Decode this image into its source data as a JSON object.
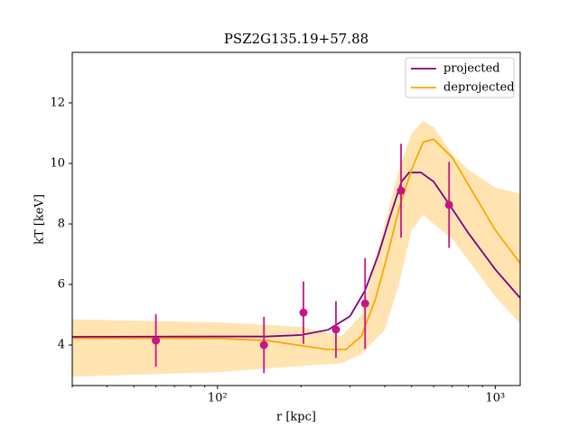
{
  "chart_data": {
    "type": "line",
    "title": "PSZ2G135.19+57.88",
    "x_label": "r [kpc]",
    "y_label": "kT [keV]",
    "x_scale": "log",
    "xlim": [
      30,
      1230
    ],
    "ylim": [
      2.66,
      13.67
    ],
    "xticks": [
      {
        "value": 100,
        "label": "10²"
      },
      {
        "value": 1000,
        "label": "10³"
      }
    ],
    "xminorticks": [
      30,
      40,
      50,
      60,
      70,
      80,
      90,
      200,
      300,
      400,
      500,
      600,
      700,
      800,
      900
    ],
    "yticks": [
      4,
      6,
      8,
      10,
      12
    ],
    "legend": "upper right",
    "series": [
      {
        "name": "projected",
        "color": "#800080",
        "x": [
          30,
          100,
          150,
          200,
          250,
          300,
          340,
          380,
          420,
          460,
          490,
          540,
          600,
          700,
          800,
          1000,
          1230
        ],
        "values": [
          4.27,
          4.28,
          4.28,
          4.33,
          4.5,
          4.95,
          5.8,
          7.0,
          8.3,
          9.4,
          9.7,
          9.7,
          9.4,
          8.5,
          7.7,
          6.5,
          5.55
        ]
      },
      {
        "name": "deprojected",
        "color": "#ffa500",
        "x": [
          30,
          100,
          150,
          200,
          250,
          290,
          330,
          370,
          410,
          450,
          500,
          550,
          600,
          700,
          800,
          1000,
          1230
        ],
        "values": [
          4.22,
          4.22,
          4.15,
          3.98,
          3.85,
          3.85,
          4.3,
          5.5,
          7.0,
          8.5,
          9.8,
          10.7,
          10.8,
          10.2,
          9.3,
          7.8,
          6.7
        ]
      }
    ],
    "band": {
      "color": "#ffa500",
      "x": [
        30,
        100,
        200,
        280,
        330,
        400,
        450,
        500,
        550,
        600,
        700,
        800,
        1000,
        1230
      ],
      "upper": [
        4.85,
        4.75,
        4.6,
        4.3,
        5.0,
        8.0,
        9.8,
        11.0,
        11.4,
        11.2,
        10.3,
        9.8,
        9.2,
        9.0
      ],
      "lower": [
        2.95,
        3.1,
        3.3,
        3.4,
        3.7,
        4.5,
        6.0,
        7.8,
        8.3,
        8.0,
        7.5,
        6.8,
        5.6,
        4.7
      ]
    },
    "points": {
      "color": "#c71585",
      "x": [
        60,
        147,
        204,
        267,
        340,
        458,
        682
      ],
      "values": [
        4.15,
        4.0,
        5.07,
        4.51,
        5.37,
        9.1,
        8.63
      ],
      "errors": [
        0.87,
        0.93,
        1.03,
        0.94,
        1.5,
        1.55,
        1.42
      ]
    }
  }
}
